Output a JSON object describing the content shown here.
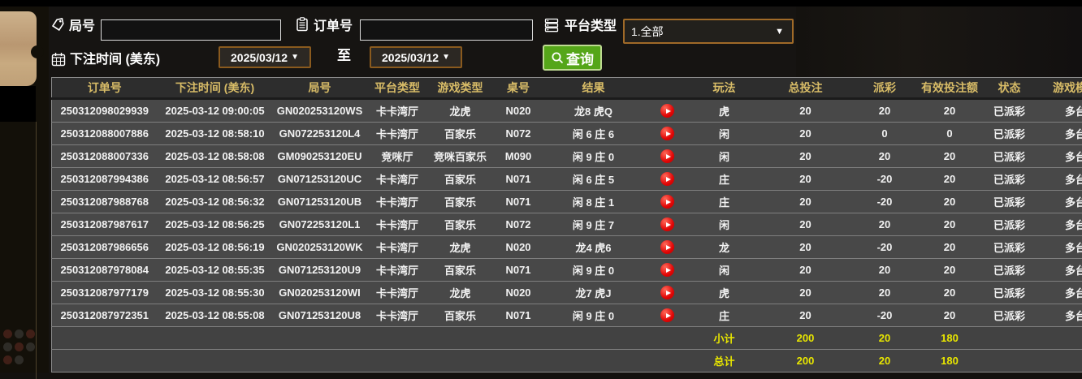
{
  "filters": {
    "round": {
      "label": "局号",
      "value": "",
      "icon": "tag-icon"
    },
    "order": {
      "label": "订单号",
      "value": "",
      "icon": "clipboard-icon"
    },
    "platform": {
      "label": "平台类型",
      "value": "1.全部",
      "icon": "server-icon",
      "arrow": "▼"
    },
    "bet_time": {
      "label": "下注时间 (美东)",
      "icon": "calendar-icon"
    },
    "date_from": "2025/03/12",
    "to_label": "至",
    "date_to": "2025/03/12",
    "query": {
      "label": "查询",
      "icon": "search-icon"
    },
    "date_arrow": "▼"
  },
  "table": {
    "headers": [
      "订单号",
      "下注时间 (美东)",
      "局号",
      "平台类型",
      "游戏类型",
      "桌号",
      "结果",
      "",
      "玩法",
      "总投注",
      "派彩",
      "有效投注额",
      "状态",
      "游戏模式"
    ],
    "rows": [
      {
        "order": "250312098029939",
        "time": "2025-03-12 09:00:05",
        "round": "GN020253120WS",
        "platform": "卡卡湾厅",
        "game": "龙虎",
        "table_no": "N020",
        "result": "龙8 虎Q",
        "play_type": "虎",
        "total_bet": "20",
        "payout": "20",
        "payout_color": "positive",
        "valid_bet": "20",
        "status": "已派彩",
        "mode": "多台"
      },
      {
        "order": "250312088007886",
        "time": "2025-03-12 08:58:10",
        "round": "GN072253120L4",
        "platform": "卡卡湾厅",
        "game": "百家乐",
        "table_no": "N072",
        "result": "闲 6 庄 6",
        "play_type": "闲",
        "total_bet": "20",
        "payout": "0",
        "payout_color": "zero",
        "valid_bet": "0",
        "status": "已派彩",
        "mode": "多台"
      },
      {
        "order": "250312088007336",
        "time": "2025-03-12 08:58:08",
        "round": "GM090253120EU",
        "platform": "竞咪厅",
        "game": "竞咪百家乐",
        "table_no": "M090",
        "result": "闲 9 庄 0",
        "play_type": "闲",
        "total_bet": "20",
        "payout": "20",
        "payout_color": "positive",
        "valid_bet": "20",
        "status": "已派彩",
        "mode": "多台"
      },
      {
        "order": "250312087994386",
        "time": "2025-03-12 08:56:57",
        "round": "GN071253120UC",
        "platform": "卡卡湾厅",
        "game": "百家乐",
        "table_no": "N071",
        "result": "闲 6 庄 5",
        "play_type": "庄",
        "total_bet": "20",
        "payout": "-20",
        "payout_color": "negative",
        "valid_bet": "20",
        "status": "已派彩",
        "mode": "多台"
      },
      {
        "order": "250312087988768",
        "time": "2025-03-12 08:56:32",
        "round": "GN071253120UB",
        "platform": "卡卡湾厅",
        "game": "百家乐",
        "table_no": "N071",
        "result": "闲 8 庄 1",
        "play_type": "庄",
        "total_bet": "20",
        "payout": "-20",
        "payout_color": "negative",
        "valid_bet": "20",
        "status": "已派彩",
        "mode": "多台"
      },
      {
        "order": "250312087987617",
        "time": "2025-03-12 08:56:25",
        "round": "GN072253120L1",
        "platform": "卡卡湾厅",
        "game": "百家乐",
        "table_no": "N072",
        "result": "闲 9 庄 7",
        "play_type": "闲",
        "total_bet": "20",
        "payout": "20",
        "payout_color": "positive",
        "valid_bet": "20",
        "status": "已派彩",
        "mode": "多台"
      },
      {
        "order": "250312087986656",
        "time": "2025-03-12 08:56:19",
        "round": "GN020253120WK",
        "platform": "卡卡湾厅",
        "game": "龙虎",
        "table_no": "N020",
        "result": "龙4 虎6",
        "play_type": "龙",
        "total_bet": "20",
        "payout": "-20",
        "payout_color": "negative",
        "valid_bet": "20",
        "status": "已派彩",
        "mode": "多台"
      },
      {
        "order": "250312087978084",
        "time": "2025-03-12 08:55:35",
        "round": "GN071253120U9",
        "platform": "卡卡湾厅",
        "game": "百家乐",
        "table_no": "N071",
        "result": "闲 9 庄 0",
        "play_type": "闲",
        "total_bet": "20",
        "payout": "20",
        "payout_color": "positive",
        "valid_bet": "20",
        "status": "已派彩",
        "mode": "多台"
      },
      {
        "order": "250312087977179",
        "time": "2025-03-12 08:55:30",
        "round": "GN020253120WI",
        "platform": "卡卡湾厅",
        "game": "龙虎",
        "table_no": "N020",
        "result": "龙7 虎J",
        "play_type": "虎",
        "total_bet": "20",
        "payout": "20",
        "payout_color": "positive",
        "valid_bet": "20",
        "status": "已派彩",
        "mode": "多台"
      },
      {
        "order": "250312087972351",
        "time": "2025-03-12 08:55:08",
        "round": "GN071253120U8",
        "platform": "卡卡湾厅",
        "game": "百家乐",
        "table_no": "N071",
        "result": "闲 9 庄 0",
        "play_type": "庄",
        "total_bet": "20",
        "payout": "-20",
        "payout_color": "negative",
        "valid_bet": "20",
        "status": "已派彩",
        "mode": "多台"
      }
    ],
    "subtotal": {
      "label": "小计",
      "total_bet": "200",
      "payout": "20",
      "valid_bet": "180"
    },
    "total": {
      "label": "总计",
      "total_bet": "200",
      "payout": "20",
      "valid_bet": "180"
    }
  },
  "icons": {
    "round": "tag-icon",
    "order": "clipboard-icon",
    "bet_time": "calendar-icon",
    "platform": "server-icon",
    "query": "search-icon",
    "result_play": "play-icon"
  },
  "colors": {
    "header_gold": "#d8bc67",
    "status_green": "#00dc00",
    "payout_positive_red": "#bb2f2f",
    "payout_negative_green": "#82cc00",
    "summary_yellow": "#e8e600",
    "query_button_green": "#55a619",
    "date_border_brown": "#8a5a1e",
    "row_gray": "#484848"
  }
}
